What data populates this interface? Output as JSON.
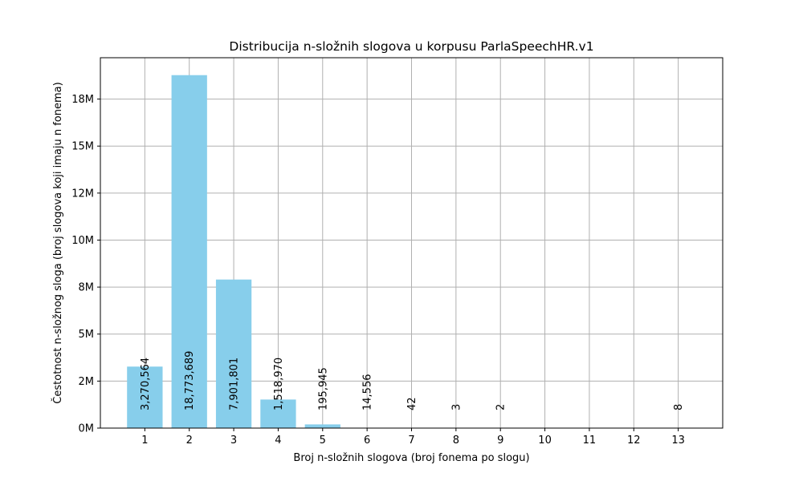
{
  "chart_data": {
    "type": "bar",
    "title": "Distribucija n-složnih slogova u korpusu ParlaSpeechHR.v1",
    "xlabel": "Broj n-složnih slogova (broj fonema po slogu)",
    "ylabel": "Čestotnost n-složnog sloga (broj slogova koji imaju n fonema)",
    "categories": [
      1,
      2,
      3,
      4,
      5,
      6,
      7,
      8,
      9,
      10,
      11,
      12,
      13
    ],
    "values": [
      3270564,
      18773689,
      7901801,
      1518970,
      195945,
      14556,
      42,
      3,
      2,
      0,
      0,
      0,
      8
    ],
    "data_labels": [
      "3,270,564",
      "18,773,689",
      "7,901,801",
      "1,518,970",
      "195,945",
      "14,556",
      "42",
      "3",
      "2",
      "",
      "",
      "",
      "8"
    ],
    "xlim": [
      0,
      14
    ],
    "ylim": [
      0,
      19700000
    ],
    "yticks": [
      0,
      2500000,
      5000000,
      7500000,
      10000000,
      12500000,
      15000000,
      17500000
    ],
    "ytick_labels": [
      "0M",
      "2M",
      "5M",
      "8M",
      "10M",
      "12M",
      "15M",
      "18M"
    ],
    "bar_color": "#87ceeb",
    "grid": true,
    "grid_color": "#b0b0b0"
  }
}
